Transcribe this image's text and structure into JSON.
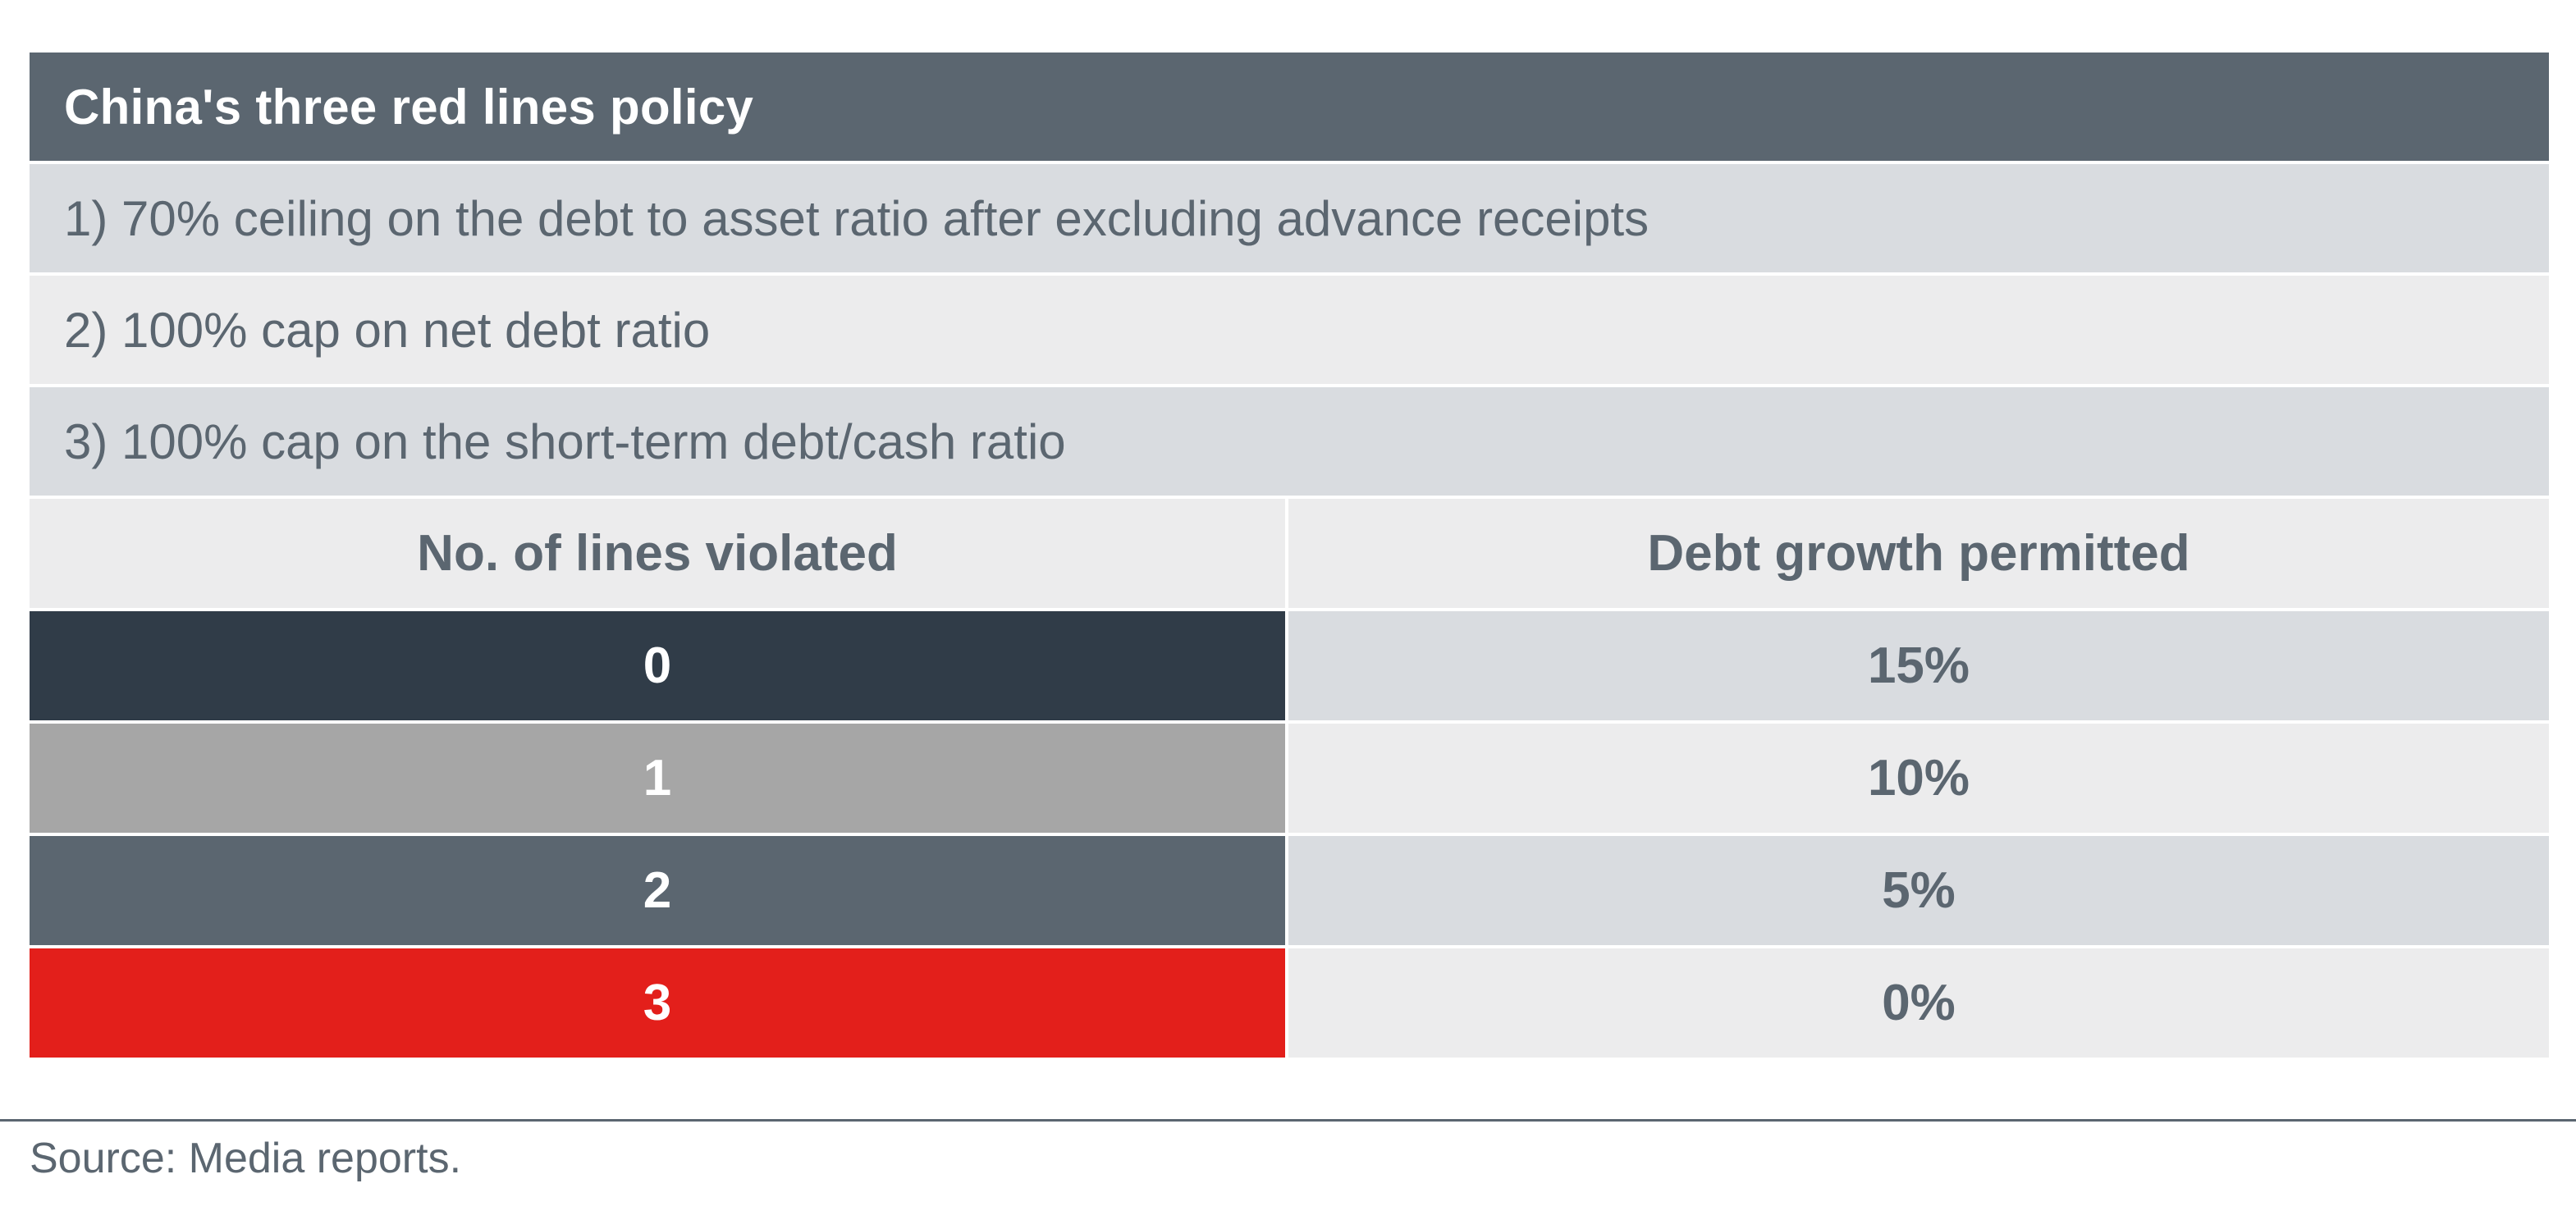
{
  "table": {
    "title": "China's three red lines policy",
    "rules": [
      "1) 70% ceiling on the debt to asset ratio after excluding advance receipts",
      "2) 100% cap on net debt ratio",
      "3) 100% cap on the short-term debt/cash ratio"
    ],
    "columns": [
      "No. of lines violated",
      "Debt growth permitted"
    ],
    "rows": [
      {
        "lines": "0",
        "growth": "15%",
        "color": "#303c48"
      },
      {
        "lines": "1",
        "growth": "10%",
        "color": "#a6a6a6"
      },
      {
        "lines": "2",
        "growth": "5%",
        "color": "#5b6670"
      },
      {
        "lines": "3",
        "growth": "0%",
        "color": "#e31f1b"
      }
    ]
  },
  "footer": {
    "source": "Source: Media reports."
  },
  "colors": {
    "header_bg": "#5b6670",
    "accent_red": "#e31f1b",
    "text": "#5b6670"
  }
}
